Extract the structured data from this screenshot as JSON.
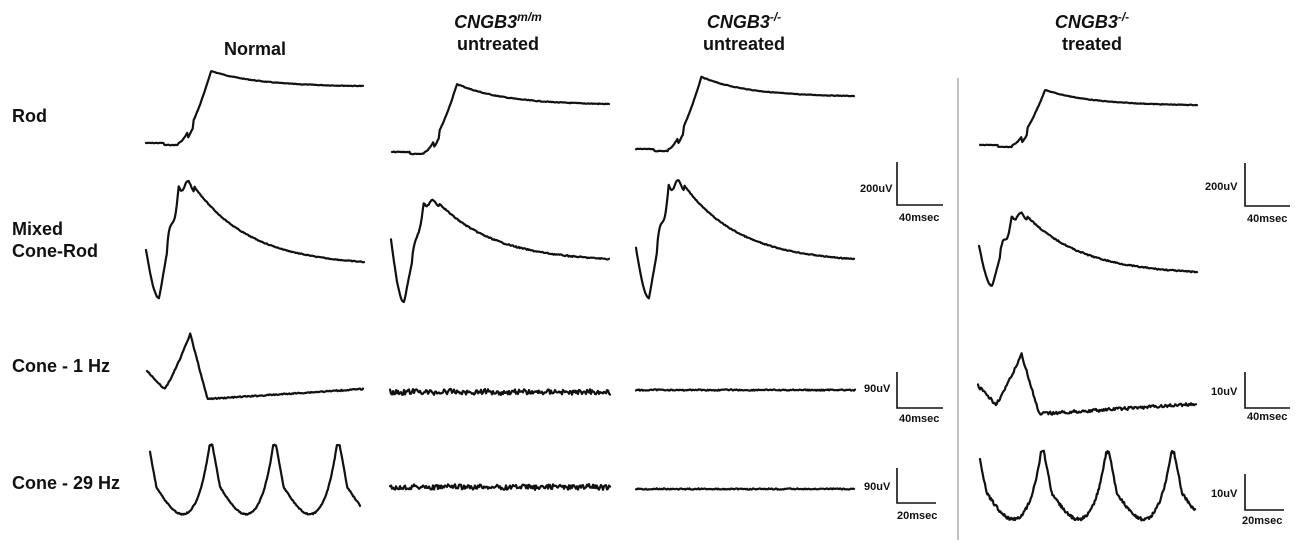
{
  "columns": [
    {
      "gene": "",
      "sup": "",
      "sub": "Normal"
    },
    {
      "gene": "CNGB3",
      "sup": "m/m",
      "sub": "untreated"
    },
    {
      "gene": "CNGB3",
      "sup": "-/-",
      "sub": "untreated"
    },
    {
      "gene": "CNGB3",
      "sup": "-/-",
      "sub": "treated"
    }
  ],
  "rows": [
    {
      "line1": "Rod",
      "line2": ""
    },
    {
      "line1": "Mixed",
      "line2": "Cone-Rod"
    },
    {
      "line1": "Cone - 1 Hz",
      "line2": ""
    },
    {
      "line1": "Cone - 29 Hz",
      "line2": ""
    }
  ],
  "scale_bars": {
    "mid": [
      {
        "v": "200uV",
        "h": "40msec"
      },
      {
        "v": "90uV",
        "h": "40msec"
      },
      {
        "v": "90uV",
        "h": "20msec"
      }
    ],
    "right": [
      {
        "v": "200uV",
        "h": "40msec"
      },
      {
        "v": "10uV",
        "h": "40msec"
      },
      {
        "v": "10uV",
        "h": "20msec"
      }
    ]
  },
  "traces": {
    "rod": [
      "Normal",
      "CNGB3 m/m untreated",
      "CNGB3 -/- untreated",
      "CNGB3 -/- treated"
    ],
    "mixed": [
      "Normal",
      "CNGB3 m/m untreated",
      "CNGB3 -/- untreated",
      "CNGB3 -/- treated"
    ],
    "cone1": [
      "Normal",
      "CNGB3 m/m untreated",
      "CNGB3 -/- untreated",
      "CNGB3 -/- treated"
    ],
    "cone29": [
      "Normal",
      "CNGB3 m/m untreated",
      "CNGB3 -/- untreated",
      "CNGB3 -/- treated"
    ]
  }
}
